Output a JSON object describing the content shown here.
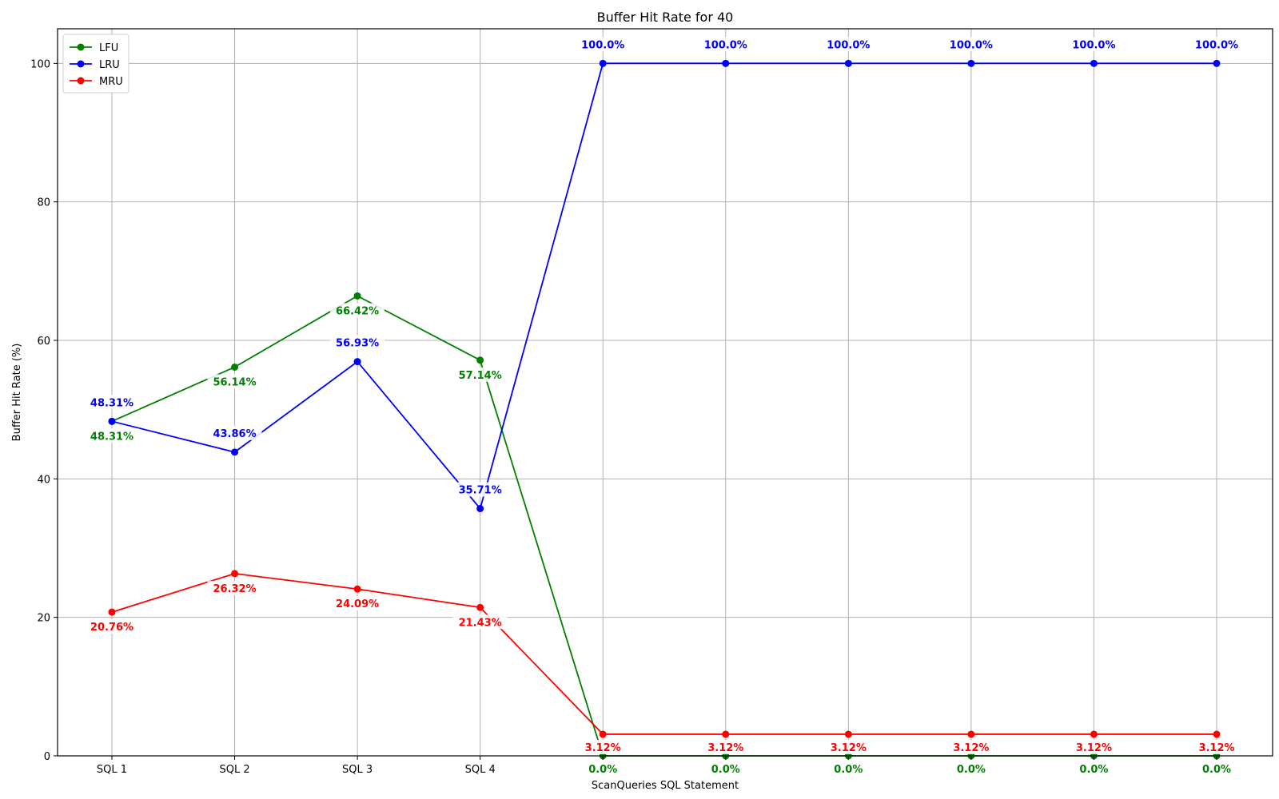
{
  "chart_data": {
    "type": "line",
    "title": "Buffer Hit Rate for 40",
    "xlabel": "ScanQueries SQL Statement",
    "ylabel": "Buffer Hit Rate (%)",
    "categories": [
      "SQL 1",
      "SQL 2",
      "SQL 3",
      "SQL 4",
      "",
      "",
      "",
      "",
      "",
      ""
    ],
    "ylim": [
      0,
      105
    ],
    "yticks": [
      0,
      20,
      40,
      60,
      80,
      100
    ],
    "grid": true,
    "legend_position": "top-left",
    "series": [
      {
        "name": "LFU",
        "color": "#008000",
        "values": [
          48.31,
          56.14,
          66.42,
          57.14,
          0.0,
          0.0,
          0.0,
          0.0,
          0.0,
          0.0
        ],
        "labels": [
          "48.31%",
          "56.14%",
          "66.42%",
          "57.14%",
          "0.0%",
          "0.0%",
          "0.0%",
          "0.0%",
          "0.0%",
          "0.0%"
        ]
      },
      {
        "name": "LRU",
        "color": "#0000ff",
        "values": [
          48.31,
          43.86,
          56.93,
          35.71,
          100.0,
          100.0,
          100.0,
          100.0,
          100.0,
          100.0
        ],
        "labels": [
          "48.31%",
          "43.86%",
          "56.93%",
          "35.71%",
          "100.0%",
          "100.0%",
          "100.0%",
          "100.0%",
          "100.0%",
          "100.0%"
        ]
      },
      {
        "name": "MRU",
        "color": "#ff0000",
        "values": [
          20.76,
          26.32,
          24.09,
          21.43,
          3.12,
          3.12,
          3.12,
          3.12,
          3.12,
          3.12
        ],
        "labels": [
          "20.76%",
          "26.32%",
          "24.09%",
          "21.43%",
          "3.12%",
          "3.12%",
          "3.12%",
          "3.12%",
          "3.12%",
          "3.12%"
        ]
      }
    ]
  }
}
